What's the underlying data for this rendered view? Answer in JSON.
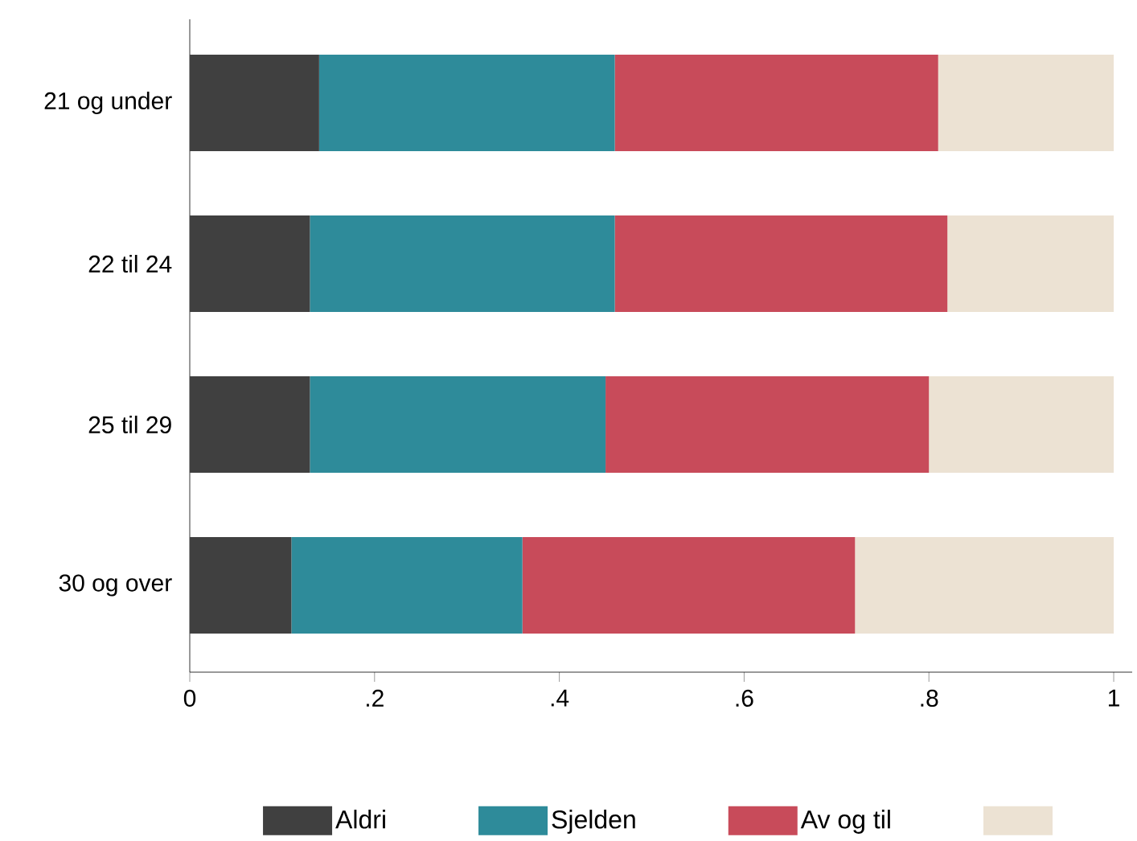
{
  "chart_data": {
    "type": "bar",
    "orientation": "horizontal",
    "stacked": true,
    "categories": [
      "21 og under",
      "22 til 24",
      "25 til 29",
      "30 og over"
    ],
    "series": [
      {
        "name": "Aldri",
        "color": "#404040",
        "values": [
          0.14,
          0.13,
          0.13,
          0.11
        ]
      },
      {
        "name": "Sjelden",
        "color": "#2e8b9a",
        "values": [
          0.32,
          0.33,
          0.32,
          0.25
        ]
      },
      {
        "name": "Av og til",
        "color": "#c84b5a",
        "values": [
          0.35,
          0.36,
          0.35,
          0.36
        ]
      },
      {
        "color": "#ece2d3",
        "values": [
          0.19,
          0.18,
          0.2,
          0.28
        ]
      }
    ],
    "xlim": [
      0,
      1.02
    ],
    "xticks": [
      0,
      {
        "value": 0.2,
        "label": ".2"
      },
      {
        "value": 0.4,
        "label": ".4"
      },
      {
        "value": 0.6,
        "label": ".6"
      },
      {
        "value": 0.8,
        "label": ".8"
      },
      1
    ],
    "legend": "bottom"
  }
}
